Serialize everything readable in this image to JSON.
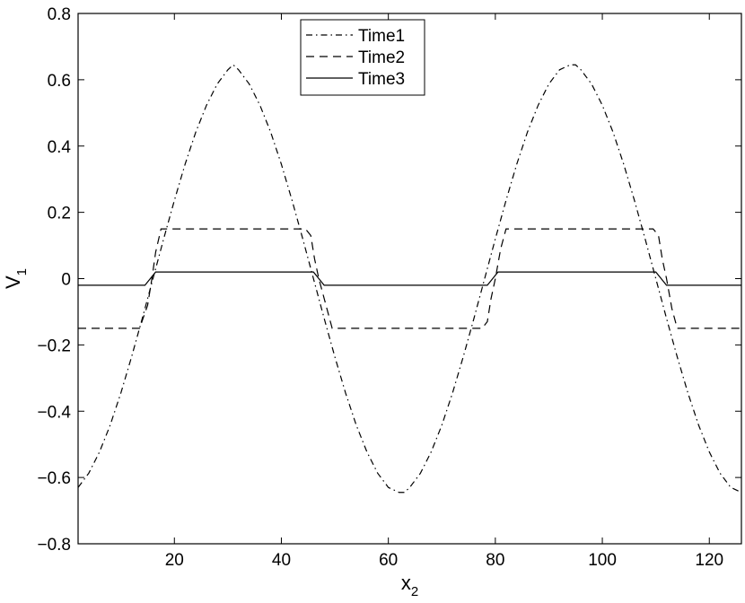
{
  "chart_data": {
    "type": "line",
    "title": "",
    "xlabel": {
      "base": "x",
      "sub": "2"
    },
    "ylabel": {
      "base": "V",
      "sub": "1"
    },
    "xlim": [
      2,
      126
    ],
    "ylim": [
      -0.8,
      0.8
    ],
    "xticks": [
      20,
      40,
      60,
      80,
      100,
      120
    ],
    "yticks": [
      -0.8,
      -0.6,
      -0.4,
      -0.2,
      0,
      0.2,
      0.4,
      0.6,
      0.8
    ],
    "ytick_labels": [
      "−0.8",
      "−0.6",
      "−0.4",
      "−0.2",
      "0",
      "0.2",
      "0.4",
      "0.6",
      "0.8"
    ],
    "grid": false,
    "legend_position": "top-center",
    "series": [
      {
        "name": "Time1",
        "style": "dashdot",
        "color": "#000000",
        "x": [
          2,
          4,
          6,
          8,
          10,
          12,
          14,
          16,
          18,
          20,
          22,
          24,
          26,
          28,
          30,
          31,
          32,
          34,
          36,
          38,
          40,
          42,
          44,
          46,
          48,
          50,
          52,
          54,
          56,
          58,
          60,
          62,
          63,
          64,
          66,
          68,
          70,
          72,
          74,
          76,
          78,
          80,
          82,
          84,
          86,
          88,
          90,
          92,
          94,
          95,
          96,
          98,
          100,
          102,
          104,
          106,
          108,
          110,
          112,
          114,
          116,
          118,
          120,
          122,
          124,
          126
        ],
        "y": [
          -0.63,
          -0.587,
          -0.523,
          -0.442,
          -0.345,
          -0.236,
          -0.12,
          0,
          0.12,
          0.236,
          0.345,
          0.442,
          0.523,
          0.587,
          0.63,
          0.645,
          0.63,
          0.587,
          0.523,
          0.442,
          0.345,
          0.236,
          0.12,
          0,
          -0.12,
          -0.236,
          -0.345,
          -0.442,
          -0.523,
          -0.587,
          -0.63,
          -0.645,
          -0.645,
          -0.63,
          -0.587,
          -0.523,
          -0.442,
          -0.345,
          -0.236,
          -0.12,
          0,
          0.12,
          0.236,
          0.345,
          0.442,
          0.523,
          0.587,
          0.63,
          0.645,
          0.645,
          0.63,
          0.587,
          0.523,
          0.442,
          0.345,
          0.236,
          0.12,
          0,
          -0.12,
          -0.236,
          -0.345,
          -0.442,
          -0.523,
          -0.587,
          -0.63,
          -0.645
        ]
      },
      {
        "name": "Time2",
        "style": "dashed",
        "color": "#000000",
        "x": [
          2,
          13.5,
          15,
          15.8,
          16.5,
          17.5,
          44.5,
          45.5,
          46.2,
          47,
          48.5,
          49.5,
          77.5,
          78.5,
          79.2,
          80,
          81,
          82,
          109.5,
          110.5,
          111.2,
          112,
          113,
          114,
          126
        ],
        "y": [
          -0.15,
          -0.15,
          -0.08,
          0,
          0.08,
          0.15,
          0.15,
          0.13,
          0.06,
          0,
          -0.09,
          -0.15,
          -0.15,
          -0.13,
          -0.06,
          0,
          0.09,
          0.15,
          0.15,
          0.13,
          0.06,
          0,
          -0.09,
          -0.15,
          -0.15
        ]
      },
      {
        "name": "Time3",
        "style": "solid",
        "color": "#000000",
        "x": [
          2,
          14.5,
          15.5,
          16.5,
          46,
          47,
          48,
          78.5,
          79.5,
          80.5,
          110,
          111,
          112,
          126
        ],
        "y": [
          -0.02,
          -0.02,
          0,
          0.02,
          0.02,
          0,
          -0.02,
          -0.02,
          0,
          0.02,
          0.02,
          0,
          -0.02,
          -0.02
        ]
      }
    ]
  }
}
